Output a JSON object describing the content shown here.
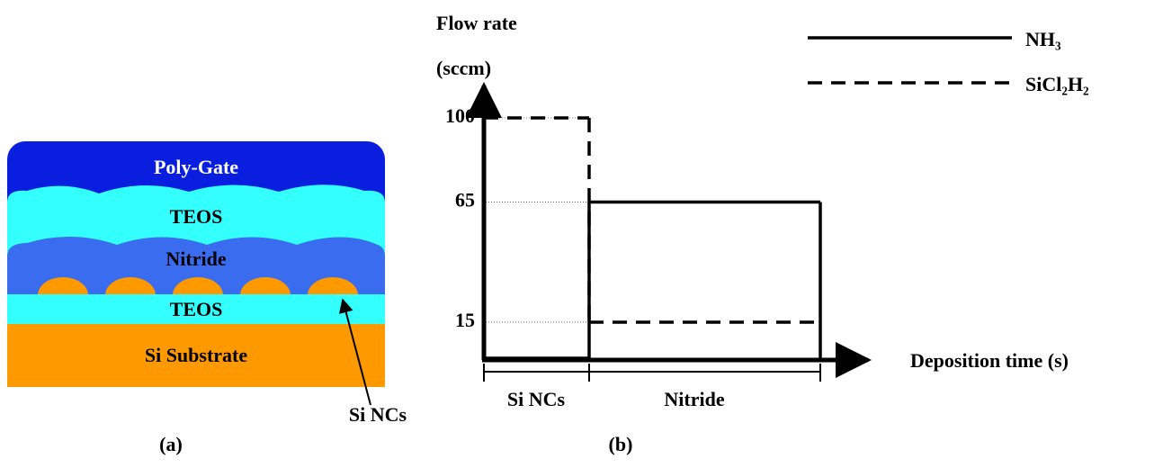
{
  "panel_a": {
    "layers": [
      "Poly-Gate",
      "TEOS",
      "Nitride",
      "TEOS",
      "Si Substrate"
    ],
    "annotation": "Si NCs",
    "caption": "(a)"
  },
  "panel_b": {
    "y_label": [
      "Flow rate",
      "(sccm)"
    ],
    "x_label": "Deposition time (s)",
    "ylim": [
      0,
      100
    ],
    "yticks": [
      100,
      65,
      15
    ],
    "phases": [
      "Si NCs",
      "Nitride"
    ],
    "series": [
      {
        "name": "NH₃",
        "style": "solid",
        "values": [
          0,
          65
        ]
      },
      {
        "name": "SiCl₂H₂",
        "style": "dashed",
        "values": [
          100,
          15
        ]
      }
    ],
    "caption": "(b)"
  }
}
